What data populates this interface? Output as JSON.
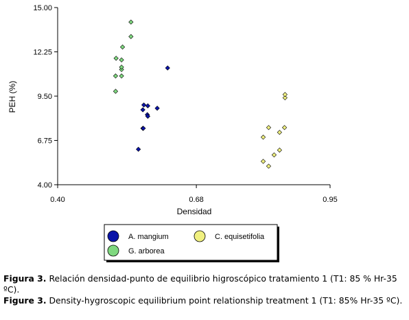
{
  "chart_data": {
    "type": "scatter",
    "xlabel": "Densidad",
    "ylabel": "PEH (%)",
    "xlim": [
      0.4,
      0.95
    ],
    "ylim": [
      4.0,
      15.0
    ],
    "xticks": [
      "0.40",
      "0.68",
      "0.95"
    ],
    "yticks": [
      "4.00",
      "6.75",
      "9.50",
      "12.25",
      "15.00"
    ],
    "grid": false,
    "legend": "bottom",
    "series": [
      {
        "name": "A. mangium",
        "color": "#0a14a8",
        "points": [
          [
            0.563,
            6.2
          ],
          [
            0.572,
            7.5
          ],
          [
            0.573,
            7.5
          ],
          [
            0.572,
            8.65
          ],
          [
            0.574,
            8.95
          ],
          [
            0.581,
            8.35
          ],
          [
            0.582,
            8.25
          ],
          [
            0.582,
            8.9
          ],
          [
            0.601,
            8.75
          ],
          [
            0.622,
            11.25
          ]
        ]
      },
      {
        "name": "G. arborea",
        "color": "#7fd87f",
        "points": [
          [
            0.517,
            9.8
          ],
          [
            0.517,
            10.75
          ],
          [
            0.518,
            11.85
          ],
          [
            0.529,
            10.75
          ],
          [
            0.529,
            11.15
          ],
          [
            0.529,
            11.3
          ],
          [
            0.529,
            11.75
          ],
          [
            0.531,
            12.55
          ],
          [
            0.548,
            13.2
          ],
          [
            0.548,
            14.1
          ]
        ]
      },
      {
        "name": "C. equisetifolia",
        "color": "#f0f080",
        "points": [
          [
            0.815,
            5.45
          ],
          [
            0.815,
            6.95
          ],
          [
            0.826,
            5.15
          ],
          [
            0.826,
            7.55
          ],
          [
            0.837,
            5.85
          ],
          [
            0.848,
            6.15
          ],
          [
            0.848,
            7.25
          ],
          [
            0.858,
            7.55
          ],
          [
            0.859,
            9.4
          ],
          [
            0.859,
            9.6
          ]
        ]
      }
    ]
  },
  "caption": {
    "es_label": "Figura 3.",
    "es_text": " Relación densidad-punto de equilibrio higroscópico tratamiento 1 (T1: 85 % Hr-35 ºC).",
    "en_label": "Figure 3.",
    "en_text": " Density-hygroscopic equilibrium point relationship treatment 1 (T1: 85% Hr-35 ºC)."
  }
}
